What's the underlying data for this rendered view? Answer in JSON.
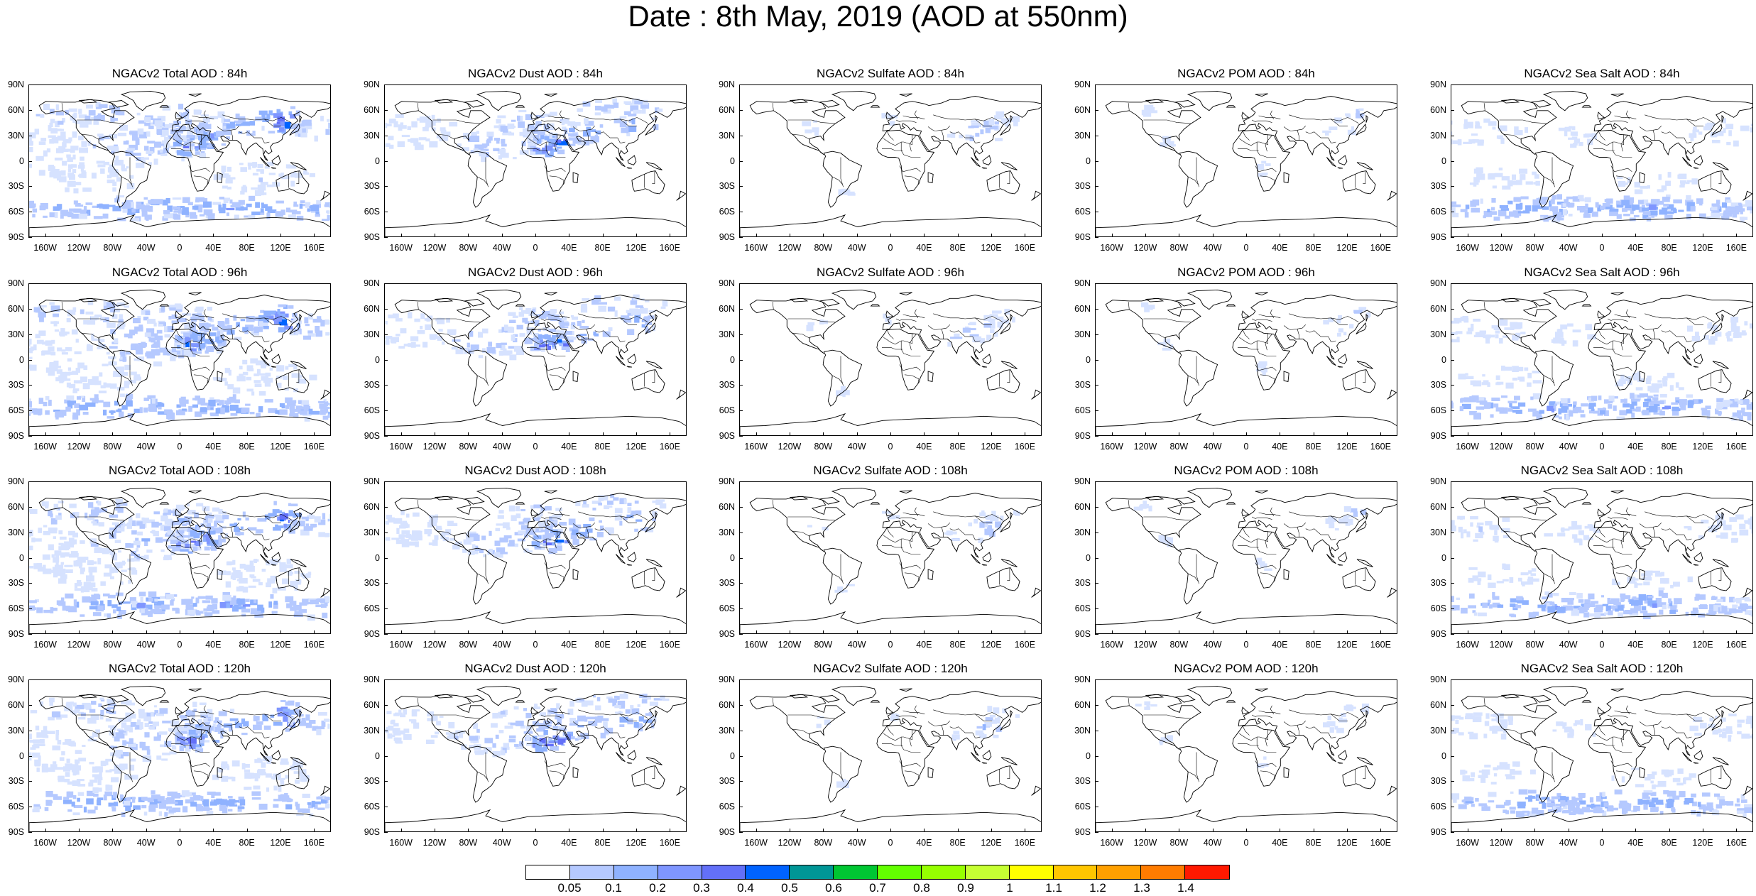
{
  "title": "Date : 8th May, 2019 (AOD at 550nm)",
  "lat_labels": [
    "90N",
    "60N",
    "30N",
    "0",
    "30S",
    "60S",
    "90S"
  ],
  "lon_labels": [
    "160W",
    "120W",
    "80W",
    "40W",
    "0",
    "40E",
    "80E",
    "120E",
    "160E"
  ],
  "panels": [
    {
      "title": "NGACv2 Total AOD : 84h",
      "species": "total",
      "lead": "84h"
    },
    {
      "title": "NGACv2 Dust AOD : 84h",
      "species": "dust",
      "lead": "84h"
    },
    {
      "title": "NGACv2 Sulfate AOD : 84h",
      "species": "sulfate",
      "lead": "84h"
    },
    {
      "title": "NGACv2 POM AOD : 84h",
      "species": "pom",
      "lead": "84h"
    },
    {
      "title": "NGACv2 Sea Salt AOD : 84h",
      "species": "seasalt",
      "lead": "84h"
    },
    {
      "title": "NGACv2 Total AOD : 96h",
      "species": "total",
      "lead": "96h"
    },
    {
      "title": "NGACv2 Dust AOD : 96h",
      "species": "dust",
      "lead": "96h"
    },
    {
      "title": "NGACv2 Sulfate AOD : 96h",
      "species": "sulfate",
      "lead": "96h"
    },
    {
      "title": "NGACv2 POM AOD : 96h",
      "species": "pom",
      "lead": "96h"
    },
    {
      "title": "NGACv2 Sea Salt AOD : 96h",
      "species": "seasalt",
      "lead": "96h"
    },
    {
      "title": "NGACv2 Total AOD : 108h",
      "species": "total",
      "lead": "108h"
    },
    {
      "title": "NGACv2 Dust AOD : 108h",
      "species": "dust",
      "lead": "108h"
    },
    {
      "title": "NGACv2 Sulfate AOD : 108h",
      "species": "sulfate",
      "lead": "108h"
    },
    {
      "title": "NGACv2 POM AOD : 108h",
      "species": "pom",
      "lead": "108h"
    },
    {
      "title": "NGACv2 Sea Salt AOD : 108h",
      "species": "seasalt",
      "lead": "108h"
    },
    {
      "title": "NGACv2 Total AOD : 120h",
      "species": "total",
      "lead": "120h"
    },
    {
      "title": "NGACv2 Dust AOD : 120h",
      "species": "dust",
      "lead": "120h"
    },
    {
      "title": "NGACv2 Sulfate AOD : 120h",
      "species": "sulfate",
      "lead": "120h"
    },
    {
      "title": "NGACv2 POM AOD : 120h",
      "species": "pom",
      "lead": "120h"
    },
    {
      "title": "NGACv2 Sea Salt  AOD : 120h",
      "species": "seasalt",
      "lead": "120h"
    }
  ],
  "colorbar": {
    "labels": [
      "0.05",
      "0.1",
      "0.2",
      "0.3",
      "0.4",
      "0.5",
      "0.6",
      "0.7",
      "0.8",
      "0.9",
      "1",
      "1.1",
      "1.2",
      "1.3",
      "1.4"
    ],
    "colors": [
      "#ffffff",
      "#d6e2ff",
      "#b5c9ff",
      "#8fb2ff",
      "#7f96ff",
      "#6370f8",
      "#0063ff",
      "#009696",
      "#00c633",
      "#63ff00",
      "#96ff00",
      "#c6ff33",
      "#ffff00",
      "#ffc600",
      "#ffa000",
      "#ff7c00",
      "#ff1900"
    ]
  }
}
